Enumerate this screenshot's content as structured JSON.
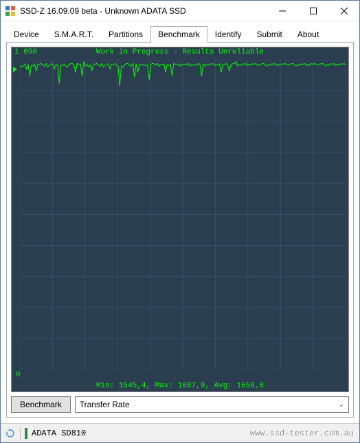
{
  "window": {
    "title": "SSD-Z 16.09.09 beta - Unknown ADATA SSD"
  },
  "tabs": [
    "Device",
    "S.M.A.R.T.",
    "Partitions",
    "Benchmark",
    "Identify",
    "Submit",
    "About"
  ],
  "active_tab_index": 3,
  "chart": {
    "type": "line",
    "title": "Work in Progress - Results Unreliable",
    "y_top_label": "1 690",
    "y_bottom_label": "0",
    "stats_line": "Min: 1545,4, Max: 1687,9, Avg: 1658,8",
    "ylim": [
      0,
      1690
    ],
    "background_color": "#2b3e50",
    "line_color": "#00ff00",
    "text_color": "#00ff00",
    "grid_color": "#3a5168",
    "grid_cols": 10,
    "grid_rows": 10,
    "font_family_mono": "Consolas, Courier New, monospace",
    "series": [
      1660,
      1650,
      1655,
      1668,
      1640,
      1665,
      1600,
      1660,
      1655,
      1665,
      1630,
      1668,
      1665,
      1670,
      1660,
      1655,
      1670,
      1650,
      1660,
      1665,
      1668,
      1640,
      1665,
      1662,
      1560,
      1660,
      1658,
      1665,
      1655,
      1650,
      1665,
      1668,
      1670,
      1660,
      1620,
      1670,
      1665,
      1668,
      1600,
      1680,
      1655,
      1665,
      1650,
      1662,
      1630,
      1668,
      1665,
      1670,
      1660,
      1655,
      1670,
      1650,
      1660,
      1665,
      1668,
      1640,
      1665,
      1662,
      1670,
      1660,
      1658,
      1545,
      1655,
      1650,
      1665,
      1668,
      1670,
      1660,
      1655,
      1670,
      1595,
      1668,
      1620,
      1665,
      1660,
      1665,
      1658,
      1662,
      1660,
      1580,
      1665,
      1670,
      1668,
      1660,
      1670,
      1655,
      1665,
      1660,
      1668,
      1620,
      1665,
      1658,
      1665,
      1600,
      1670,
      1665,
      1660,
      1668,
      1655,
      1665,
      1662,
      1668,
      1660,
      1670,
      1655,
      1665,
      1658,
      1665,
      1660,
      1670,
      1665,
      1600,
      1668,
      1655,
      1665,
      1660,
      1668,
      1665,
      1670,
      1658,
      1665,
      1660,
      1668,
      1620,
      1665,
      1662,
      1670,
      1660,
      1630,
      1665,
      1668,
      1670,
      1680,
      1655,
      1665,
      1660,
      1668,
      1665,
      1670,
      1658,
      1665,
      1660,
      1668,
      1665,
      1670,
      1662,
      1660,
      1665,
      1668,
      1670,
      1660,
      1655,
      1665,
      1660,
      1668,
      1665,
      1670,
      1658,
      1665,
      1660,
      1668,
      1665,
      1670,
      1662,
      1660,
      1665,
      1668,
      1670,
      1660,
      1655,
      1665,
      1660,
      1668,
      1665,
      1670,
      1658,
      1665,
      1660,
      1668,
      1665,
      1670,
      1662,
      1660,
      1665,
      1668,
      1670,
      1660,
      1655,
      1665,
      1660,
      1668,
      1665,
      1670,
      1658,
      1665,
      1660,
      1668,
      1665,
      1670,
      1662
    ]
  },
  "controls": {
    "benchmark_button": "Benchmark",
    "mode_select": "Transfer Rate"
  },
  "statusbar": {
    "device": "ADATA SD810",
    "watermark": "www.ssd-tester.com.au"
  }
}
